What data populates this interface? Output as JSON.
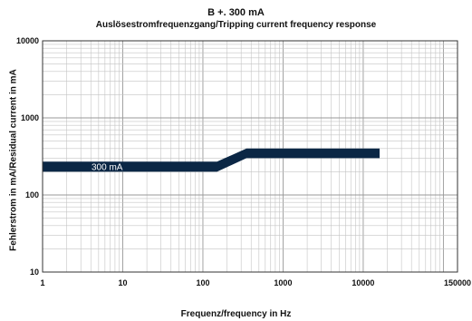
{
  "chart_data": {
    "type": "line",
    "title": "B +. 300 mA",
    "subtitle": "Auslösestromfrequenzgang/Tripping current frequency response",
    "xlabel": "Frequenz/frequency in Hz",
    "ylabel": "Fehlerstrom in mA/Residual current in mA",
    "x_scale": "log",
    "y_scale": "log",
    "xlim": [
      1,
      150000
    ],
    "ylim": [
      10,
      10000
    ],
    "x_ticks": [
      1,
      10,
      100,
      1000,
      10000,
      150000
    ],
    "x_tick_labels": [
      "1",
      "10",
      "100",
      "1000",
      "10000",
      "150000"
    ],
    "y_ticks": [
      10,
      100,
      1000,
      10000
    ],
    "y_tick_labels": [
      "10",
      "100",
      "1000",
      "10000"
    ],
    "grid": true,
    "series": [
      {
        "name": "300 mA",
        "color": "#0b2745",
        "x": [
          1,
          150,
          350,
          16000
        ],
        "y_upper": [
          270,
          270,
          400,
          400
        ],
        "y_lower": [
          200,
          200,
          300,
          300
        ]
      }
    ]
  }
}
